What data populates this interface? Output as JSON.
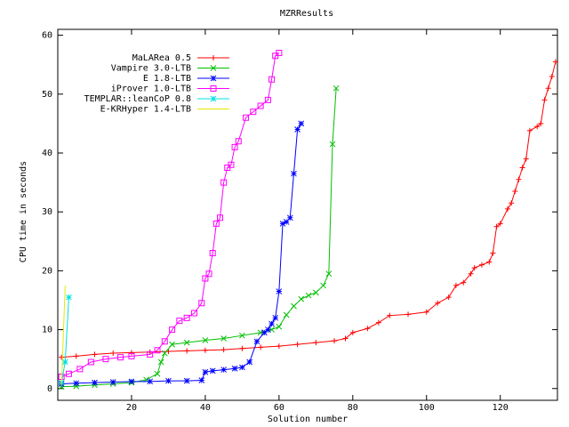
{
  "chart_data": {
    "type": "line",
    "title": "MZRResults",
    "xlabel": "Solution number",
    "ylabel": "CPU time in seconds",
    "xlim": [
      0,
      135.5
    ],
    "ylim": [
      -2,
      61
    ],
    "xticks": [
      20,
      40,
      60,
      80,
      100,
      120
    ],
    "yticks": [
      0,
      10,
      20,
      30,
      40,
      50,
      60
    ],
    "grid": false,
    "legend": "upper left",
    "series": [
      {
        "name": "MaLARea 0.5",
        "color": "#ff0000",
        "marker": "plus",
        "x": [
          1,
          5,
          10,
          15,
          20,
          25,
          30,
          35,
          40,
          45,
          50,
          55,
          60,
          65,
          70,
          75,
          78,
          80,
          84,
          87,
          90,
          95,
          100,
          103,
          106,
          108,
          110,
          112,
          113,
          115,
          117,
          118,
          119,
          120,
          122,
          123,
          124,
          125,
          126,
          127,
          128,
          130,
          131,
          132,
          133,
          134,
          135
        ],
        "values": [
          5.3,
          5.5,
          5.8,
          6,
          6.1,
          6.2,
          6.3,
          6.4,
          6.5,
          6.6,
          6.8,
          7,
          7.2,
          7.5,
          7.8,
          8.1,
          8.5,
          9.5,
          10.2,
          11.2,
          12.4,
          12.6,
          13,
          14.5,
          15.5,
          17.5,
          18,
          19.5,
          20.5,
          21,
          21.5,
          23,
          27.5,
          28,
          30.5,
          31.5,
          33.5,
          35.5,
          37.5,
          39,
          43.8,
          44.5,
          45,
          49,
          51,
          53,
          55.5
        ]
      },
      {
        "name": "Vampire 3.0-LTB",
        "color": "#00c000",
        "marker": "cross",
        "x": [
          1,
          5,
          10,
          15,
          20,
          24,
          27,
          28,
          29,
          31,
          35,
          40,
          45,
          50,
          55,
          58,
          60,
          62,
          64,
          66,
          68,
          70,
          72,
          73.5,
          74.5,
          75.5
        ],
        "values": [
          0.3,
          0.4,
          0.6,
          0.8,
          1,
          1.5,
          2.5,
          4.5,
          6,
          7.5,
          7.8,
          8.2,
          8.5,
          9,
          9.5,
          10,
          10.5,
          12.5,
          14,
          15.2,
          15.8,
          16.3,
          17.5,
          19.5,
          41.5,
          51
        ]
      },
      {
        "name": "E 1.8-LTB",
        "color": "#0000ff",
        "marker": "star",
        "x": [
          1,
          5,
          10,
          15,
          20,
          25,
          30,
          35,
          39,
          40,
          42,
          45,
          48,
          50,
          52,
          54,
          56,
          57,
          58,
          59,
          60,
          61,
          62,
          63,
          64,
          65,
          66
        ],
        "values": [
          0.8,
          0.9,
          1,
          1.1,
          1.2,
          1.2,
          1.3,
          1.3,
          1.4,
          2.8,
          3,
          3.2,
          3.4,
          3.6,
          4.5,
          8,
          9.5,
          10,
          11,
          12,
          16.5,
          28,
          28.3,
          29,
          36.5,
          44,
          45
        ]
      },
      {
        "name": "iProver 1.0-LTB",
        "color": "#ff00ff",
        "marker": "square",
        "x": [
          1,
          3,
          6,
          9,
          13,
          17,
          20,
          25,
          27,
          29,
          31,
          33,
          35,
          37,
          39,
          40,
          41,
          42,
          43,
          44,
          45,
          46,
          47,
          48,
          49,
          51,
          53,
          55,
          57,
          58,
          59,
          60
        ],
        "values": [
          2,
          2.5,
          3.3,
          4.5,
          5,
          5.3,
          5.5,
          5.8,
          6.5,
          8,
          10,
          11.5,
          12,
          12.8,
          14.5,
          18.7,
          19.5,
          23,
          28,
          29,
          35,
          37.5,
          38,
          41,
          42,
          46,
          47,
          48,
          49,
          52.5,
          56.5,
          57
        ]
      },
      {
        "name": "TEMPLAR::leanCoP 0.8",
        "color": "#00e0e0",
        "marker": "star",
        "x": [
          1,
          2,
          3
        ],
        "values": [
          1,
          4.5,
          15.5
        ]
      },
      {
        "name": "E-KRHyper 1.4-LTB",
        "color": "#e8e800",
        "marker": "none",
        "x": [
          1,
          2
        ],
        "values": [
          0.5,
          17.5
        ]
      }
    ]
  }
}
